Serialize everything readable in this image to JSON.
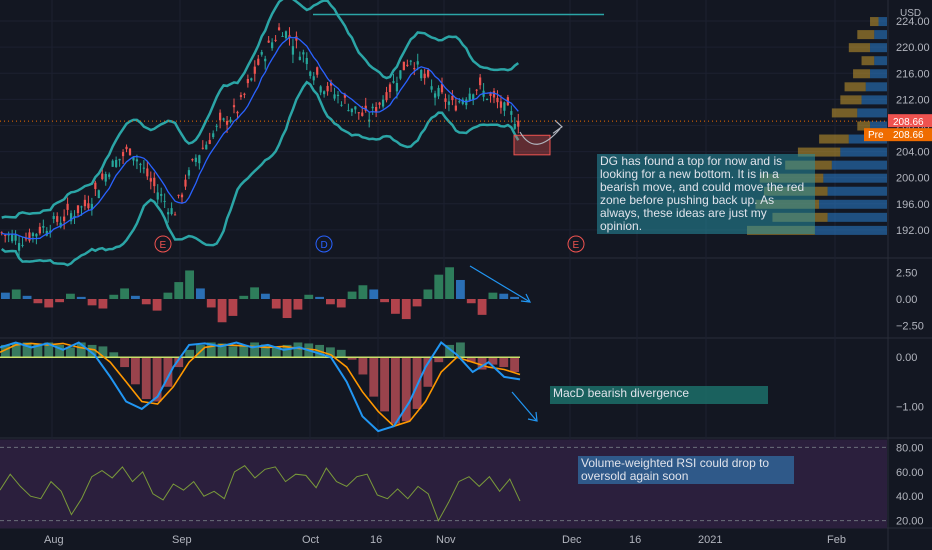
{
  "chart_data": [
    {
      "type": "candlestick",
      "currency": "USD",
      "ylim": [
        188,
        226
      ],
      "y_ticks": [
        192.0,
        196.0,
        200.0,
        204.0,
        208.0,
        212.0,
        216.0,
        220.0,
        224.0
      ],
      "last_price": "208.66",
      "pre_label": "Pre",
      "pre_price": "208.66",
      "x_labels": [
        "Aug",
        "Sep",
        "Oct",
        "16",
        "Nov",
        "Dec",
        "16",
        "2021",
        "Feb"
      ],
      "earnings_markers": [
        "E",
        "D",
        "E"
      ],
      "price_path": [
        {
          "date": "Jul-21",
          "close": 191.5
        },
        {
          "date": "Jul-28",
          "close": 190.5
        },
        {
          "date": "Aug-04",
          "close": 192.5
        },
        {
          "date": "Aug-11",
          "close": 194.0
        },
        {
          "date": "Aug-18",
          "close": 196.0
        },
        {
          "date": "Aug-25",
          "close": 201.5
        },
        {
          "date": "Sep-01",
          "close": 204.5
        },
        {
          "date": "Sep-08",
          "close": 199.0
        },
        {
          "date": "Sep-15",
          "close": 194.5
        },
        {
          "date": "Sep-22",
          "close": 203.0
        },
        {
          "date": "Sep-29",
          "close": 207.5
        },
        {
          "date": "Oct-06",
          "close": 210.5
        },
        {
          "date": "Oct-13",
          "close": 218.0
        },
        {
          "date": "Oct-16",
          "close": 223.0
        },
        {
          "date": "Oct-20",
          "close": 219.0
        },
        {
          "date": "Oct-23",
          "close": 214.0
        },
        {
          "date": "Oct-27",
          "close": 211.5
        },
        {
          "date": "Oct-30",
          "close": 209.0
        },
        {
          "date": "Nov-02",
          "close": 213.5
        },
        {
          "date": "Nov-05",
          "close": 218.5
        },
        {
          "date": "Nov-09",
          "close": 213.5
        },
        {
          "date": "Nov-12",
          "close": 211.0
        },
        {
          "date": "Nov-16",
          "close": 214.0
        },
        {
          "date": "Nov-19",
          "close": 211.5
        },
        {
          "date": "Nov-23",
          "close": 208.66
        }
      ],
      "resistance_level": 225.0,
      "volume_profile": [
        {
          "price": 224,
          "total": 4,
          "up": 2
        },
        {
          "price": 222,
          "total": 7,
          "up": 3
        },
        {
          "price": 220,
          "total": 9,
          "up": 4
        },
        {
          "price": 218,
          "total": 6,
          "up": 3
        },
        {
          "price": 216,
          "total": 8,
          "up": 4
        },
        {
          "price": 214,
          "total": 10,
          "up": 5
        },
        {
          "price": 212,
          "total": 11,
          "up": 6
        },
        {
          "price": 210,
          "total": 13,
          "up": 7
        },
        {
          "price": 208,
          "total": 7,
          "up": 4
        },
        {
          "price": 206,
          "total": 16,
          "up": 9
        },
        {
          "price": 204,
          "total": 21,
          "up": 11
        },
        {
          "price": 202,
          "total": 24,
          "up": 13
        },
        {
          "price": 200,
          "total": 30,
          "up": 15
        },
        {
          "price": 198,
          "total": 29,
          "up": 14
        },
        {
          "price": 196,
          "total": 31,
          "up": 16
        },
        {
          "price": 194,
          "total": 27,
          "up": 14
        },
        {
          "price": 192,
          "total": 33,
          "up": 17
        }
      ]
    },
    {
      "type": "bar",
      "name_hidden": true,
      "ylim": [
        -3.5,
        3.5
      ],
      "y_ticks": [
        "2.50",
        "0.00",
        "−2.50"
      ],
      "values": [
        0.6,
        0.9,
        0.3,
        -0.4,
        -0.8,
        -0.3,
        0.5,
        0.2,
        -0.6,
        -0.9,
        0.4,
        1.0,
        0.3,
        -0.5,
        -1.1,
        0.6,
        1.6,
        2.7,
        1.0,
        -0.8,
        -2.2,
        -1.6,
        0.3,
        1.1,
        0.5,
        -0.9,
        -1.8,
        -1.0,
        0.4,
        0.2,
        -0.5,
        -0.8,
        0.7,
        1.3,
        0.9,
        -0.3,
        -1.4,
        -1.9,
        -0.7,
        0.9,
        2.3,
        3.0,
        1.8,
        -0.4,
        -1.5,
        0.6,
        0.5,
        0.2
      ]
    },
    {
      "type": "bar+line",
      "ylim": [
        -1.6,
        0.35
      ],
      "y_ticks": [
        "0.00",
        "−1.00"
      ],
      "histogram": [
        0.25,
        0.3,
        0.3,
        0.28,
        0.3,
        0.25,
        0.2,
        0.3,
        0.25,
        0.22,
        0.1,
        -0.2,
        -0.55,
        -0.85,
        -0.9,
        -0.6,
        -0.2,
        0.15,
        0.25,
        0.3,
        0.28,
        0.22,
        0.25,
        0.3,
        0.26,
        0.22,
        0.25,
        0.3,
        0.28,
        0.25,
        0.2,
        0.15,
        -0.05,
        -0.35,
        -0.8,
        -1.1,
        -1.35,
        -1.3,
        -1.05,
        -0.6,
        -0.1,
        0.25,
        0.3,
        -0.1,
        -0.25,
        -0.15,
        -0.2,
        -0.3
      ],
      "line_fast": [
        0.2,
        0.3,
        0.2,
        0.28,
        0.15,
        0.3,
        0.05,
        -0.4,
        -0.9,
        -1.05,
        -0.8,
        -0.2,
        0.25,
        0.28,
        0.22,
        0.3,
        0.2,
        0.25,
        0.15,
        0.2,
        0.1,
        0.0,
        -0.5,
        -1.2,
        -1.5,
        -1.4,
        -0.9,
        -0.2,
        0.3,
        0.05,
        -0.3,
        -0.1,
        -0.4,
        -0.45
      ],
      "line_slow": [
        0.1,
        0.25,
        0.28,
        0.25,
        0.28,
        0.2,
        0.15,
        -0.1,
        -0.5,
        -0.9,
        -0.95,
        -0.6,
        -0.1,
        0.2,
        0.25,
        0.24,
        0.22,
        0.2,
        0.22,
        0.18,
        0.15,
        0.05,
        -0.2,
        -0.7,
        -1.1,
        -1.4,
        -1.3,
        -0.9,
        -0.3,
        0.0,
        -0.1,
        -0.2,
        -0.25,
        -0.35
      ]
    },
    {
      "type": "line",
      "ylim": [
        14,
        86
      ],
      "y_ticks": [
        "80.00",
        "60.00",
        "40.00",
        "20.00"
      ],
      "band": [
        30,
        70
      ],
      "values": [
        45,
        58,
        48,
        40,
        38,
        52,
        44,
        25,
        38,
        56,
        61,
        55,
        64,
        52,
        60,
        42,
        37,
        50,
        45,
        52,
        40,
        44,
        38,
        60,
        65,
        55,
        62,
        64,
        52,
        58,
        57,
        47,
        63,
        52,
        48,
        56,
        58,
        41,
        38,
        46,
        38,
        48,
        42,
        20,
        35,
        52,
        56,
        48,
        56,
        44,
        54,
        36
      ]
    }
  ],
  "annotations": {
    "dg_note": "DG has found a top for now and is looking for a new bottom. It is in a bearish move, and could move the red zone before pushing back up. As always, these ideas are just my opinion.",
    "macd_note": "MacD bearish divergence",
    "rsi_note": "Volume-weighted RSI could drop to oversold again soon"
  },
  "colors": {
    "background": "#131722",
    "candle_up": "#26a69a",
    "candle_down": "#ef5350",
    "bollinger": "#2ba5a6",
    "ma_line": "#2962ff",
    "hist_up": "#3f8c6a",
    "hist_down": "#b24b53",
    "macd_fast": "#2196f3",
    "macd_slow": "#ff9800",
    "rsi_line": "#7a9a3a",
    "rsi_band": "#2b1f3d",
    "profile_up": "#2a7fd0",
    "profile_down": "#c99a2e",
    "price_tag": "#ef6c00"
  }
}
